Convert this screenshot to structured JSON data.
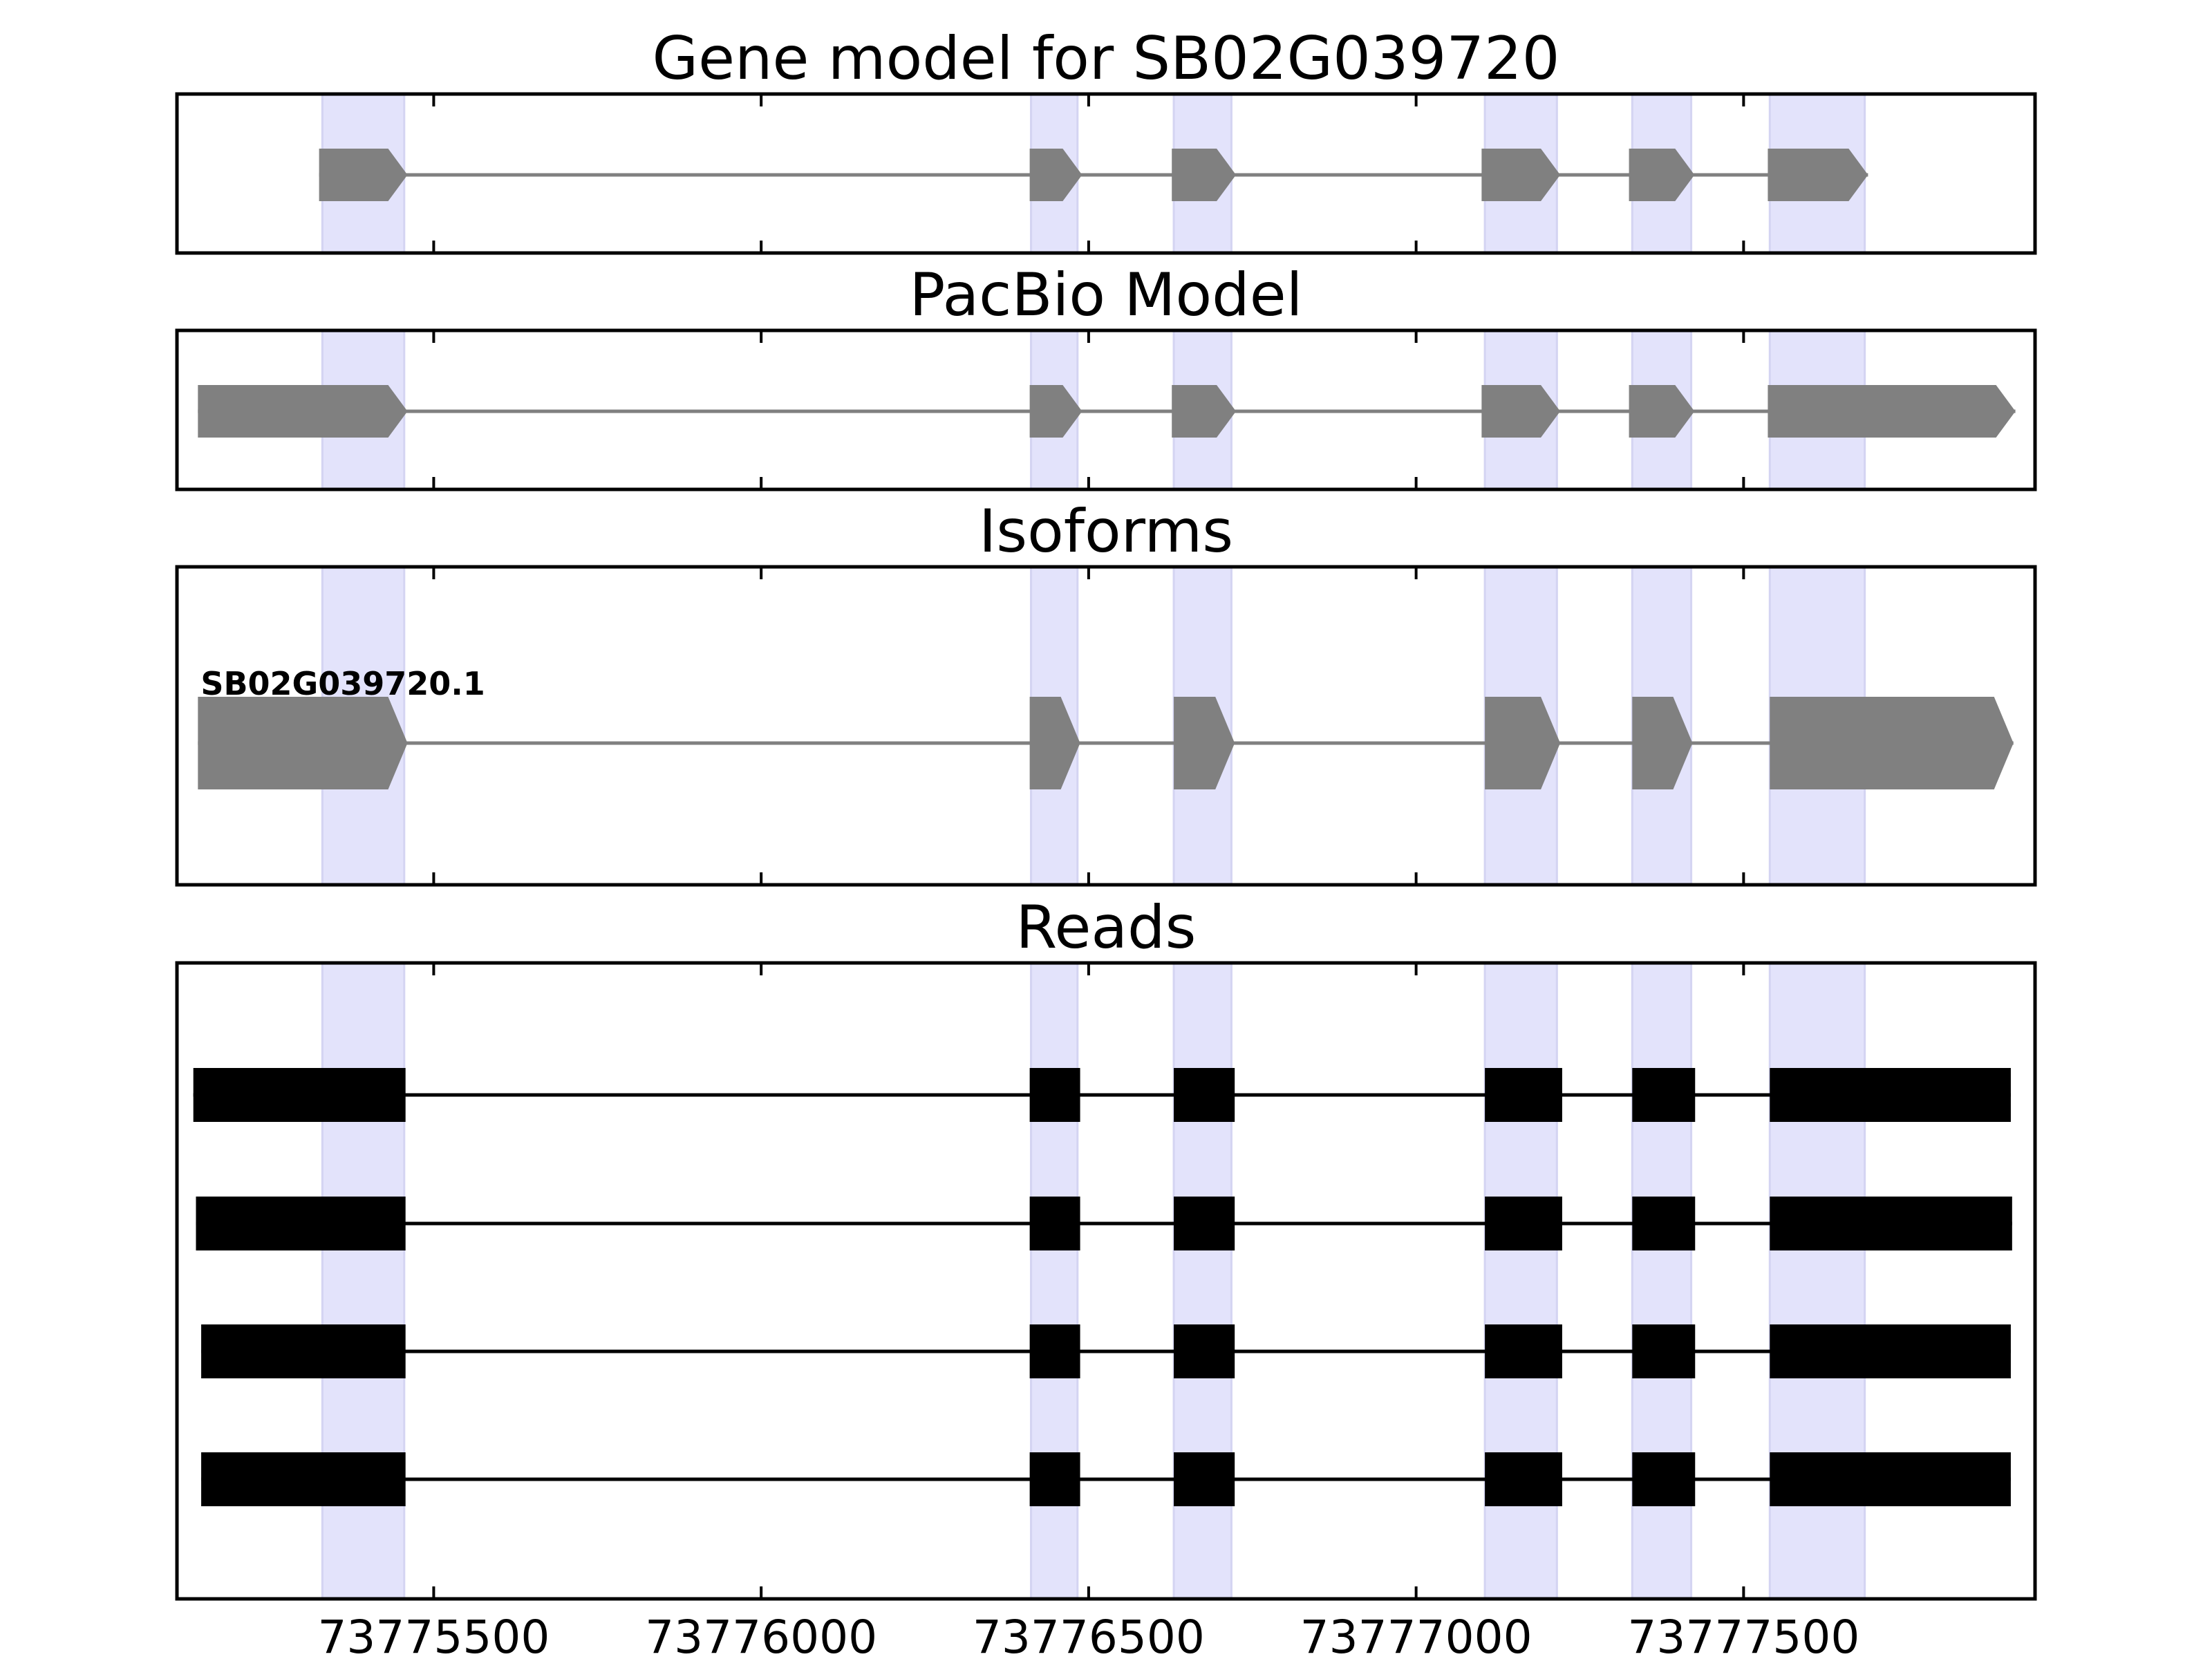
{
  "chart_data": {
    "type": "gene_model_tracks",
    "xlim": [
      73775108,
      73777945
    ],
    "xticks": [
      73775500,
      73776000,
      73776500,
      73777000,
      73777500
    ],
    "xtick_labels": [
      "73775500",
      "73776000",
      "73776500",
      "73777000",
      "73777500"
    ],
    "highlight_color": "#e3e3fb",
    "highlight_regions": [
      [
        73775330,
        73775455
      ],
      [
        73776412,
        73776483
      ],
      [
        73776630,
        73776718
      ],
      [
        73777105,
        73777215
      ],
      [
        73777330,
        73777420
      ],
      [
        73777540,
        73777685
      ]
    ],
    "panels": [
      {
        "key": "gene_model",
        "title": "Gene model for SB02G039720",
        "color": "#808080",
        "strand": "+",
        "exons": [
          [
            73775325,
            73775460
          ],
          [
            73776410,
            73776490
          ],
          [
            73776627,
            73776725
          ],
          [
            73777100,
            73777220
          ],
          [
            73777325,
            73777425
          ],
          [
            73777537,
            73777690
          ]
        ]
      },
      {
        "key": "pacbio_model",
        "title": "PacBio Model",
        "color": "#808080",
        "strand": "+",
        "exons": [
          [
            73775140,
            73775460
          ],
          [
            73776410,
            73776490
          ],
          [
            73776627,
            73776725
          ],
          [
            73777100,
            73777220
          ],
          [
            73777325,
            73777425
          ],
          [
            73777537,
            73777915
          ]
        ]
      },
      {
        "key": "isoforms",
        "title": "Isoforms",
        "color": "#808080",
        "strand": "+",
        "isoforms": [
          {
            "label": "SB02G039720.1",
            "exons": [
              [
                73775140,
                73775460
              ],
              [
                73776410,
                73776487
              ],
              [
                73776630,
                73776723
              ],
              [
                73777105,
                73777220
              ],
              [
                73777330,
                73777422
              ],
              [
                73777540,
                73777912
              ]
            ]
          }
        ]
      },
      {
        "key": "reads",
        "title": "Reads",
        "color": "#000000",
        "reads": [
          {
            "exons": [
              [
                73775133,
                73775457
              ],
              [
                73776410,
                73776487
              ],
              [
                73776630,
                73776723
              ],
              [
                73777105,
                73777223
              ],
              [
                73777330,
                73777426
              ],
              [
                73777540,
                73777908
              ]
            ]
          },
          {
            "exons": [
              [
                73775137,
                73775457
              ],
              [
                73776410,
                73776487
              ],
              [
                73776630,
                73776723
              ],
              [
                73777105,
                73777223
              ],
              [
                73777330,
                73777426
              ],
              [
                73777540,
                73777910
              ]
            ]
          },
          {
            "exons": [
              [
                73775145,
                73775457
              ],
              [
                73776410,
                73776487
              ],
              [
                73776630,
                73776723
              ],
              [
                73777105,
                73777223
              ],
              [
                73777330,
                73777426
              ],
              [
                73777540,
                73777908
              ]
            ]
          },
          {
            "exons": [
              [
                73775145,
                73775457
              ],
              [
                73776410,
                73776487
              ],
              [
                73776630,
                73776723
              ],
              [
                73777105,
                73777223
              ],
              [
                73777330,
                73777426
              ],
              [
                73777540,
                73777908
              ]
            ]
          }
        ]
      }
    ]
  }
}
